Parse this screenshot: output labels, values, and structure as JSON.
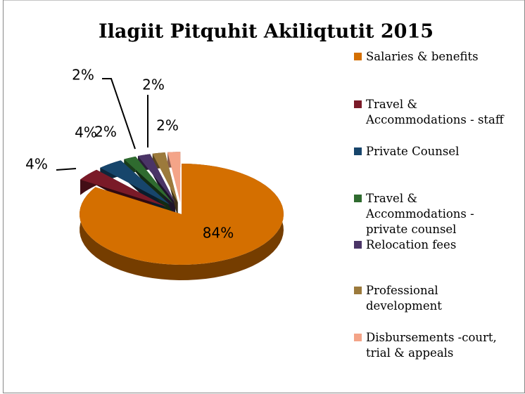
{
  "chart_data": {
    "type": "pie3d",
    "title": "Ilagiit Pitquhit Akiliqtutit 2015",
    "categories": [
      "Salaries & benefits",
      "Travel & Accommodations - staff",
      "Private Counsel",
      "Travel & Accommodations - private counsel",
      "Relocation fees",
      "Professional development",
      "Disbursements -court, trial & appeals"
    ],
    "values": [
      84,
      4,
      4,
      2,
      2,
      2,
      2
    ],
    "value_labels": [
      "84%",
      "4%",
      "4%",
      "2%",
      "2%",
      "2%",
      "2%"
    ],
    "colors": [
      "#d46f00",
      "#7a1a28",
      "#17456b",
      "#2f6b2f",
      "#4a3466",
      "#9c7a3c",
      "#f4a488"
    ],
    "legend": "right"
  }
}
